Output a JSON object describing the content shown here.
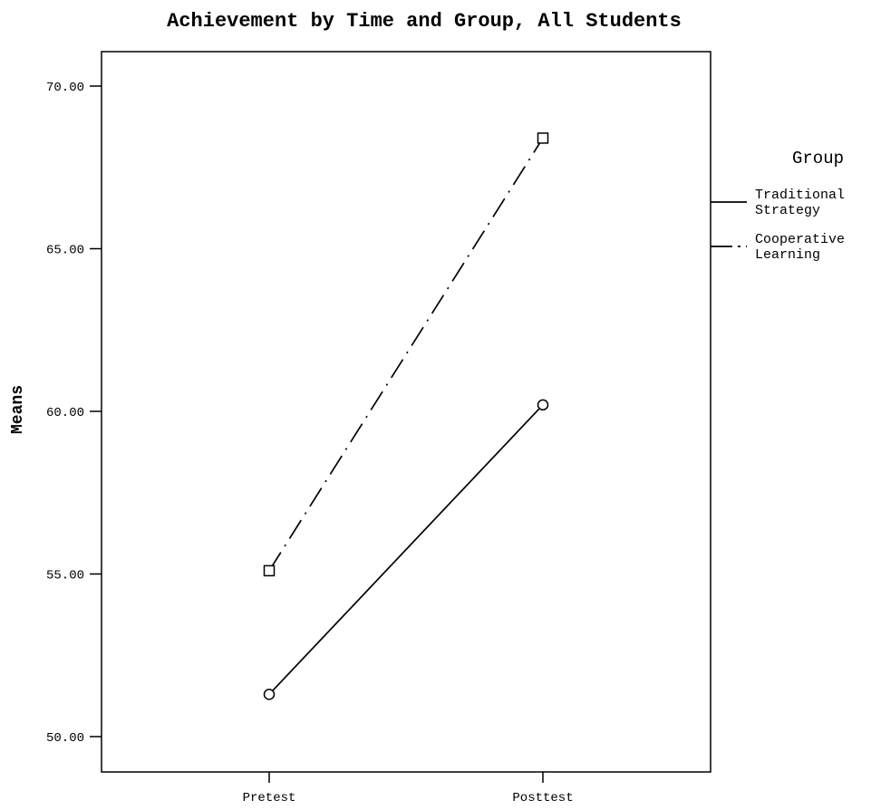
{
  "chart_data": {
    "type": "line",
    "title": "Achievement by Time and Group, All Students",
    "xlabel": "",
    "ylabel": "Means",
    "categories": [
      "Pretest",
      "Posttest"
    ],
    "ylim": [
      49,
      71
    ],
    "yticks": [
      50,
      55,
      60,
      65,
      70
    ],
    "ytick_labels": [
      "50.00",
      "55.00",
      "60.00",
      "65.00",
      "70.00"
    ],
    "grid": false,
    "legend": {
      "title": "Group",
      "placement": "right"
    },
    "series": [
      {
        "name": "Traditional Strategy",
        "name_lines": [
          "Traditional",
          "Strategy"
        ],
        "values": [
          51.3,
          60.2
        ],
        "marker": "circle",
        "dash": "solid",
        "color": "#000000"
      },
      {
        "name": "Cooperative Learning",
        "name_lines": [
          "Cooperative",
          "Learning"
        ],
        "values": [
          55.1,
          68.4
        ],
        "marker": "square",
        "dash": "dash-dot",
        "color": "#000000"
      }
    ]
  }
}
